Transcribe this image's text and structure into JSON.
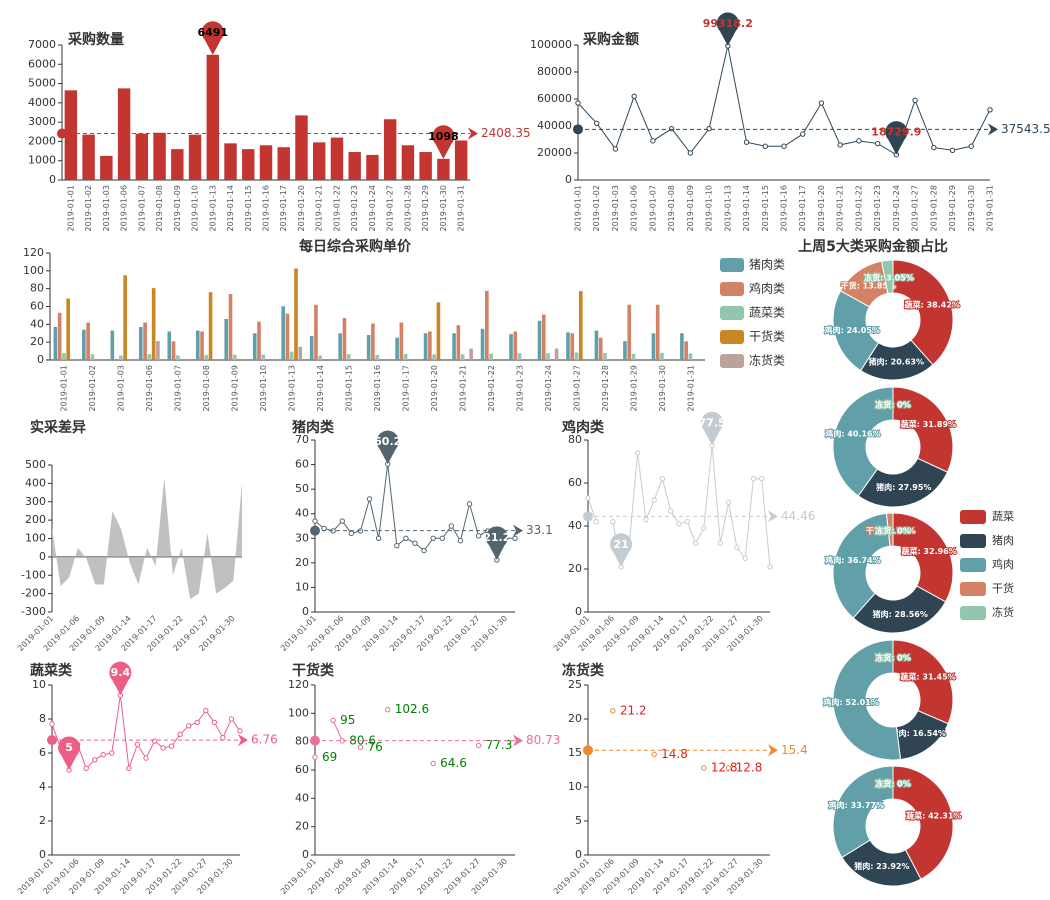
{
  "chart_data": [
    {
      "type": "bar",
      "title": "采购数量",
      "color": "#c23531",
      "pin_label_color": "#000000",
      "categories": [
        "2019-01-01",
        "2019-01-02",
        "2019-01-03",
        "2019-01-06",
        "2019-01-07",
        "2019-01-08",
        "2019-01-09",
        "2019-01-10",
        "2019-01-13",
        "2019-01-14",
        "2019-01-15",
        "2019-01-16",
        "2019-01-17",
        "2019-01-20",
        "2019-01-21",
        "2019-01-22",
        "2019-01-23",
        "2019-01-24",
        "2019-01-27",
        "2019-01-28",
        "2019-01-29",
        "2019-01-30",
        "2019-01-31"
      ],
      "values": [
        4650,
        2350,
        1250,
        4750,
        2400,
        2450,
        1600,
        2350,
        6491,
        1900,
        1600,
        1800,
        1700,
        3350,
        1950,
        2200,
        1450,
        1300,
        3150,
        1800,
        1450,
        1098,
        2050
      ],
      "ylim": [
        0,
        7000
      ],
      "yticks": [
        0,
        1000,
        2000,
        3000,
        4000,
        5000,
        6000,
        7000
      ],
      "pins": [
        "max",
        "min"
      ],
      "average": 2408.35
    },
    {
      "type": "line",
      "title": "采购金额",
      "color": "#2f4554",
      "pin_label_color": "#c23531",
      "categories": [
        "2019-01-01",
        "2019-01-02",
        "2019-01-03",
        "2019-01-06",
        "2019-01-07",
        "2019-01-08",
        "2019-01-09",
        "2019-01-10",
        "2019-01-13",
        "2019-01-14",
        "2019-01-15",
        "2019-01-16",
        "2019-01-17",
        "2019-01-20",
        "2019-01-21",
        "2019-01-22",
        "2019-01-23",
        "2019-01-24",
        "2019-01-27",
        "2019-01-28",
        "2019-01-29",
        "2019-01-30",
        "2019-01-31"
      ],
      "values": [
        57000,
        42000,
        23000,
        62000,
        29000,
        38000,
        20000,
        38000,
        99318.2,
        28000,
        25000,
        25000,
        34000,
        57000,
        26000,
        29000,
        27000,
        18729.9,
        59000,
        24000,
        22000,
        25000,
        52000
      ],
      "ylim": [
        0,
        100000
      ],
      "yticks": [
        0,
        20000,
        40000,
        60000,
        80000,
        100000
      ],
      "pins": [
        "max",
        "min"
      ],
      "average": 37543.57
    },
    {
      "type": "bar",
      "title": "每日综合采购单价",
      "legend": "right",
      "categories": [
        "2019-01-01",
        "2019-01-02",
        "2019-01-03",
        "2019-01-06",
        "2019-01-07",
        "2019-01-08",
        "2019-01-09",
        "2019-01-10",
        "2019-01-13",
        "2019-01-14",
        "2019-01-15",
        "2019-01-16",
        "2019-01-17",
        "2019-01-20",
        "2019-01-21",
        "2019-01-22",
        "2019-01-23",
        "2019-01-24",
        "2019-01-27",
        "2019-01-28",
        "2019-01-29",
        "2019-01-30",
        "2019-01-31"
      ],
      "series": [
        {
          "name": "猪肉类",
          "color": "#61a0a8",
          "values": [
            37,
            34,
            33,
            37,
            32,
            33,
            46,
            30,
            60.2,
            27,
            30,
            28,
            25,
            30,
            30,
            35,
            29,
            44,
            31,
            33,
            21.2,
            30,
            30
          ]
        },
        {
          "name": "鸡肉类",
          "color": "#d48265",
          "values": [
            53,
            42,
            null,
            42,
            21,
            32,
            74,
            43,
            52,
            62,
            47,
            41,
            42,
            32,
            39,
            77.5,
            32,
            51,
            30,
            25,
            62,
            62,
            21
          ]
        },
        {
          "name": "蔬菜类",
          "color": "#91c7ae",
          "values": [
            7.7,
            6.3,
            5,
            6.5,
            5.1,
            5.6,
            5.9,
            6,
            9.4,
            5.1,
            6.5,
            5.7,
            6.7,
            6.3,
            6.4,
            7.1,
            7.6,
            7.8,
            8.5,
            7.8,
            6.9,
            8,
            7.3
          ]
        },
        {
          "name": "干货类",
          "color": "#ca8622",
          "values": [
            69,
            null,
            95,
            80.6,
            null,
            76,
            null,
            null,
            102.6,
            null,
            null,
            null,
            null,
            64.6,
            null,
            null,
            null,
            null,
            77.3,
            null,
            null,
            null,
            null
          ]
        },
        {
          "name": "冻货类",
          "color": "#bda29a",
          "values": [
            null,
            null,
            null,
            21.2,
            null,
            null,
            null,
            null,
            14.8,
            null,
            null,
            null,
            null,
            null,
            12.8,
            null,
            null,
            12.8,
            null,
            null,
            null,
            null,
            null
          ]
        }
      ],
      "ylim": [
        0,
        120
      ],
      "yticks": [
        0,
        20,
        40,
        60,
        80,
        100,
        120
      ]
    },
    {
      "type": "area",
      "title": "实采差异",
      "color": "#b5b5b5",
      "categories": [
        "2019-01-01",
        null,
        null,
        "2019-01-06",
        null,
        null,
        "2019-01-09",
        null,
        null,
        "2019-01-14",
        null,
        null,
        "2019-01-17",
        null,
        null,
        "2019-01-22",
        null,
        null,
        "2019-01-27",
        null,
        null,
        "2019-01-30",
        null
      ],
      "values": [
        160,
        -160,
        -110,
        50,
        -10,
        -150,
        -150,
        250,
        150,
        -30,
        -150,
        50,
        -50,
        430,
        -100,
        50,
        -230,
        -200,
        130,
        -200,
        -170,
        -130,
        400
      ],
      "ylim": [
        -300,
        500
      ],
      "yticks": [
        -300,
        -200,
        -100,
        0,
        100,
        200,
        300,
        400,
        500
      ]
    },
    {
      "type": "line",
      "title": "猪肉类",
      "color": "#546570",
      "categories": [
        "2019-01-01",
        null,
        null,
        "2019-01-06",
        null,
        null,
        "2019-01-09",
        null,
        null,
        "2019-01-14",
        null,
        null,
        "2019-01-17",
        null,
        null,
        "2019-01-22",
        null,
        null,
        "2019-01-27",
        null,
        null,
        "2019-01-30",
        null
      ],
      "values": [
        37,
        34,
        33,
        37,
        32,
        33,
        46,
        30,
        60.2,
        27,
        30,
        28,
        25,
        30,
        30,
        35,
        29,
        44,
        31,
        33,
        21.2,
        30,
        30
      ],
      "ylim": [
        0,
        70
      ],
      "yticks": [
        0,
        10,
        20,
        30,
        40,
        50,
        60,
        70
      ],
      "pins": [
        "max",
        "min"
      ],
      "average": 33.1
    },
    {
      "type": "line",
      "title": "鸡肉类",
      "color": "#c4ccd3",
      "categories": [
        "2019-01-01",
        null,
        null,
        "2019-01-06",
        null,
        null,
        "2019-01-09",
        null,
        null,
        "2019-01-14",
        null,
        null,
        "2019-01-17",
        null,
        null,
        "2019-01-22",
        null,
        null,
        "2019-01-27",
        null,
        null,
        "2019-01-30",
        null
      ],
      "values": [
        53,
        42,
        null,
        42,
        21,
        32,
        74,
        43,
        52,
        62,
        47,
        41,
        42,
        32,
        39,
        77.5,
        32,
        51,
        30,
        25,
        62,
        62,
        21
      ],
      "ylim": [
        0,
        80
      ],
      "yticks": [
        0,
        20,
        40,
        60,
        80
      ],
      "pins": [
        "max",
        "min"
      ],
      "average": 44.46
    },
    {
      "type": "line",
      "title": "蔬菜类",
      "color": "#ec5f84",
      "categories": [
        "2019-01-01",
        null,
        null,
        "2019-01-06",
        null,
        null,
        "2019-01-09",
        null,
        null,
        "2019-01-14",
        null,
        null,
        "2019-01-17",
        null,
        null,
        "2019-01-22",
        null,
        null,
        "2019-01-27",
        null,
        null,
        "2019-01-30",
        null
      ],
      "values": [
        7.7,
        6.3,
        5,
        6.5,
        5.1,
        5.6,
        5.9,
        6,
        9.4,
        5.1,
        6.5,
        5.7,
        6.7,
        6.3,
        6.4,
        7.1,
        7.6,
        7.8,
        8.5,
        7.8,
        6.9,
        8,
        7.3
      ],
      "ylim": [
        0,
        10
      ],
      "yticks": [
        0,
        2,
        4,
        6,
        8,
        10
      ],
      "pins": [
        "max",
        "min"
      ],
      "average": 6.76
    },
    {
      "type": "line",
      "title": "干货类",
      "color": "#e9709b",
      "label_color": "#008000",
      "point_labels": true,
      "categories": [
        "2019-01-01",
        null,
        null,
        "2019-01-06",
        null,
        null,
        "2019-01-09",
        null,
        null,
        "2019-01-14",
        null,
        null,
        "2019-01-17",
        null,
        null,
        "2019-01-22",
        null,
        null,
        "2019-01-27",
        null,
        null,
        "2019-01-30",
        null
      ],
      "values": [
        69,
        null,
        95,
        80.6,
        null,
        76,
        null,
        null,
        102.6,
        null,
        null,
        null,
        null,
        64.6,
        null,
        null,
        null,
        null,
        77.3,
        null,
        null,
        null,
        null
      ],
      "ylim": [
        0,
        120
      ],
      "yticks": [
        0,
        20,
        40,
        60,
        80,
        100,
        120
      ],
      "average": 80.73
    },
    {
      "type": "line",
      "title": "冻货类",
      "color": "#f0882e",
      "label_color": "#e02020",
      "point_labels": true,
      "categories": [
        "2019-01-01",
        null,
        null,
        "2019-01-06",
        null,
        null,
        "2019-01-09",
        null,
        null,
        "2019-01-14",
        null,
        null,
        "2019-01-17",
        null,
        null,
        "2019-01-22",
        null,
        null,
        "2019-01-27",
        null,
        null,
        "2019-01-30",
        null
      ],
      "values": [
        null,
        null,
        null,
        21.2,
        null,
        null,
        null,
        null,
        14.8,
        null,
        null,
        null,
        null,
        null,
        12.8,
        null,
        null,
        12.8,
        null,
        null,
        null,
        null,
        null
      ],
      "ylim": [
        0,
        25
      ],
      "yticks": [
        0,
        5,
        10,
        15,
        20,
        25
      ],
      "average": 15.4
    },
    {
      "type": "pie",
      "title": "上周5大类采购金额占比",
      "colors": [
        "#c23531",
        "#2f4554",
        "#61a0a8",
        "#d48265",
        "#91c7ae"
      ],
      "values": [
        38.42,
        20.63,
        24.05,
        13.85,
        3.05
      ],
      "value_labels": [
        "蔬菜: 38.42%",
        "猪肉: 20.63%",
        "鸡肉: 24.05%",
        "干货: 13.85%",
        "冻货: 3.05%"
      ]
    },
    {
      "type": "pie",
      "colors": [
        "#c23531",
        "#2f4554",
        "#61a0a8",
        "#d48265",
        "#91c7ae"
      ],
      "values": [
        31.89,
        27.95,
        40.16,
        0,
        0
      ],
      "value_labels": [
        "蔬菜: 31.89%",
        "猪肉: 27.95%",
        "鸡肉: 40.16%",
        "干货: 0%",
        "冻货: 0%"
      ]
    },
    {
      "type": "pie",
      "colors": [
        "#c23531",
        "#2f4554",
        "#61a0a8",
        "#d48265",
        "#91c7ae"
      ],
      "legend": "right",
      "categories": [
        "蔬菜",
        "猪肉",
        "鸡肉",
        "干货",
        "冻货"
      ],
      "values": [
        32.96,
        28.56,
        36.74,
        1.74,
        0
      ],
      "value_labels": [
        "蔬菜: 32.96%",
        "猪肉: 28.56%",
        "鸡肉: 36.74%",
        "干货: 1.74%",
        "冻货: 0%"
      ]
    },
    {
      "type": "pie",
      "colors": [
        "#c23531",
        "#2f4554",
        "#61a0a8",
        "#d48265",
        "#91c7ae"
      ],
      "values": [
        31.45,
        16.54,
        52.01,
        0,
        0
      ],
      "value_labels": [
        "蔬菜: 31.45%",
        "猪肉: 16.54%",
        "鸡肉: 52.01%",
        "干货: 0%",
        "冻货: 0%"
      ]
    },
    {
      "type": "pie",
      "colors": [
        "#c23531",
        "#2f4554",
        "#61a0a8",
        "#d48265",
        "#91c7ae"
      ],
      "values": [
        42.31,
        23.92,
        33.77,
        0,
        0
      ],
      "value_labels": [
        "蔬菜: 42.31%",
        "猪肉: 23.92%",
        "鸡肉: 33.77%",
        "干货: 0%",
        "冻货: 0%"
      ]
    }
  ]
}
